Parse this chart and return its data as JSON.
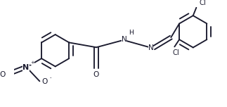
{
  "bg_color": "#ffffff",
  "line_color": "#1a1a2e",
  "text_color": "#1a1a2e",
  "line_width": 1.35,
  "font_size": 7.2,
  "fig_width": 3.23,
  "fig_height": 1.52,
  "dpi": 100,
  "xlim": [
    0,
    9.5
  ],
  "ylim": [
    0,
    4.5
  ]
}
